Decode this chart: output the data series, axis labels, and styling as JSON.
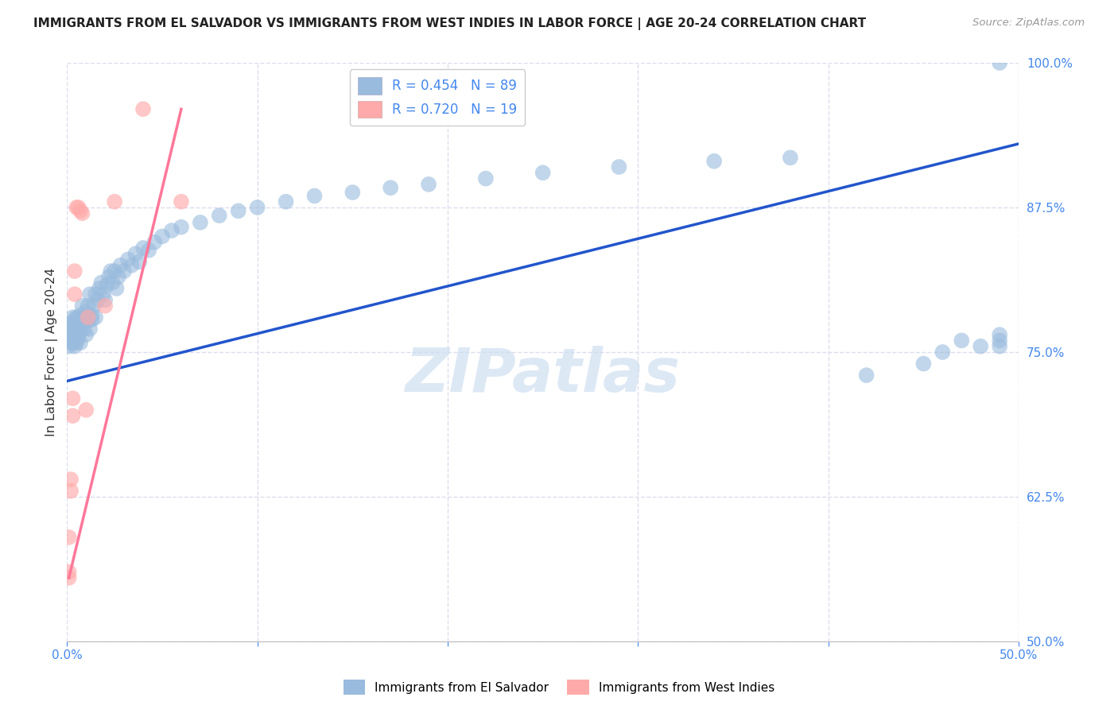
{
  "title": "IMMIGRANTS FROM EL SALVADOR VS IMMIGRANTS FROM WEST INDIES IN LABOR FORCE | AGE 20-24 CORRELATION CHART",
  "source": "Source: ZipAtlas.com",
  "ylabel": "In Labor Force | Age 20-24",
  "xlim": [
    0.0,
    0.5
  ],
  "ylim": [
    0.5,
    1.0
  ],
  "xticks": [
    0.0,
    0.1,
    0.2,
    0.3,
    0.4,
    0.5
  ],
  "xtick_labels": [
    "0.0%",
    "",
    "",
    "",
    "",
    "50.0%"
  ],
  "ytick_labels_right": [
    "100.0%",
    "87.5%",
    "75.0%",
    "62.5%",
    "50.0%"
  ],
  "yticks_right": [
    1.0,
    0.875,
    0.75,
    0.625,
    0.5
  ],
  "legend_blue_r": "R = 0.454",
  "legend_blue_n": "N = 89",
  "legend_pink_r": "R = 0.720",
  "legend_pink_n": "N = 19",
  "legend_label_blue": "Immigrants from El Salvador",
  "legend_label_pink": "Immigrants from West Indies",
  "blue_color": "#99BBDD",
  "pink_color": "#FFAAAA",
  "line_blue": "#2255CC",
  "line_pink": "#FF7799",
  "axis_color": "#4488EE",
  "grid_color": "#DDDDEE",
  "watermark": "ZIPatlas",
  "blue_line_x0": 0.0,
  "blue_line_y0": 0.725,
  "blue_line_x1": 0.5,
  "blue_line_y1": 0.93,
  "pink_line_x0": 0.001,
  "pink_line_y0": 0.555,
  "pink_line_x1": 0.06,
  "pink_line_y1": 0.96,
  "blue_x": [
    0.001,
    0.001,
    0.001,
    0.002,
    0.002,
    0.002,
    0.002,
    0.003,
    0.003,
    0.003,
    0.003,
    0.004,
    0.004,
    0.004,
    0.004,
    0.005,
    0.005,
    0.005,
    0.005,
    0.006,
    0.006,
    0.006,
    0.007,
    0.007,
    0.007,
    0.008,
    0.008,
    0.008,
    0.009,
    0.009,
    0.01,
    0.01,
    0.01,
    0.011,
    0.011,
    0.012,
    0.012,
    0.013,
    0.013,
    0.014,
    0.015,
    0.015,
    0.016,
    0.017,
    0.018,
    0.019,
    0.02,
    0.021,
    0.022,
    0.023,
    0.024,
    0.025,
    0.026,
    0.027,
    0.028,
    0.03,
    0.032,
    0.034,
    0.036,
    0.038,
    0.04,
    0.043,
    0.046,
    0.05,
    0.055,
    0.06,
    0.07,
    0.08,
    0.09,
    0.1,
    0.115,
    0.13,
    0.15,
    0.17,
    0.19,
    0.22,
    0.25,
    0.29,
    0.34,
    0.38,
    0.42,
    0.45,
    0.46,
    0.47,
    0.48,
    0.49,
    0.49,
    0.49,
    0.49
  ],
  "blue_y": [
    0.76,
    0.77,
    0.755,
    0.762,
    0.758,
    0.775,
    0.768,
    0.76,
    0.772,
    0.78,
    0.758,
    0.765,
    0.778,
    0.755,
    0.77,
    0.762,
    0.78,
    0.775,
    0.758,
    0.77,
    0.778,
    0.762,
    0.768,
    0.782,
    0.758,
    0.775,
    0.79,
    0.78,
    0.778,
    0.77,
    0.78,
    0.765,
    0.785,
    0.79,
    0.778,
    0.77,
    0.8,
    0.782,
    0.778,
    0.79,
    0.8,
    0.78,
    0.795,
    0.805,
    0.81,
    0.8,
    0.795,
    0.808,
    0.815,
    0.82,
    0.81,
    0.82,
    0.805,
    0.815,
    0.825,
    0.82,
    0.83,
    0.825,
    0.835,
    0.828,
    0.84,
    0.838,
    0.845,
    0.85,
    0.855,
    0.858,
    0.862,
    0.868,
    0.872,
    0.875,
    0.88,
    0.885,
    0.888,
    0.892,
    0.895,
    0.9,
    0.905,
    0.91,
    0.915,
    0.918,
    0.73,
    0.74,
    0.75,
    0.76,
    0.755,
    0.755,
    0.76,
    0.765,
    1.0
  ],
  "pink_x": [
    0.001,
    0.001,
    0.001,
    0.002,
    0.002,
    0.003,
    0.003,
    0.004,
    0.004,
    0.005,
    0.006,
    0.007,
    0.008,
    0.01,
    0.011,
    0.02,
    0.025,
    0.04,
    0.06
  ],
  "pink_y": [
    0.555,
    0.59,
    0.56,
    0.63,
    0.64,
    0.695,
    0.71,
    0.8,
    0.82,
    0.875,
    0.875,
    0.872,
    0.87,
    0.7,
    0.78,
    0.79,
    0.88,
    0.96,
    0.88
  ]
}
